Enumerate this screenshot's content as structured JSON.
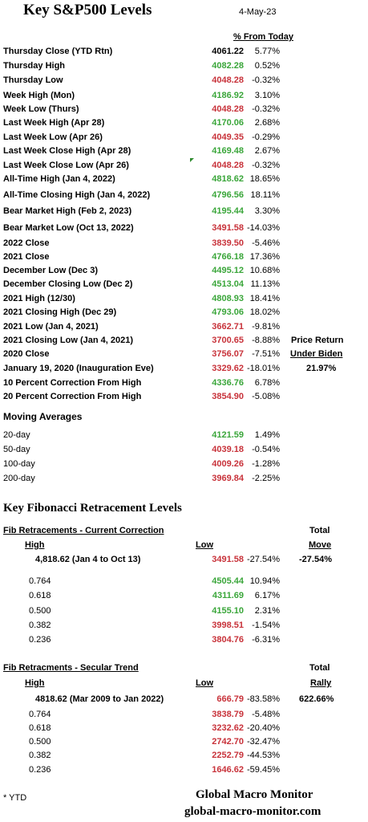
{
  "header": {
    "title": "Key S&P500 Levels",
    "date": "4-May-23",
    "pct_header": "% From Today"
  },
  "levels": [
    {
      "label": "Thursday Close (YTD Rtn)",
      "value": "4061.22",
      "pct": "5.77%",
      "color": "black"
    },
    {
      "label": "Thursday  High",
      "value": "4082.28",
      "pct": "0.52%",
      "color": "green"
    },
    {
      "label": "Thursday Low",
      "value": "4048.28",
      "pct": "-0.32%",
      "color": "red"
    },
    {
      "label": "Week High (Mon)",
      "value": "4186.92",
      "pct": "3.10%",
      "color": "green"
    },
    {
      "label": "Week Low (Thurs)",
      "value": "4048.28",
      "pct": "-0.32%",
      "color": "red"
    },
    {
      "label": "Last Week High (Apr 28)",
      "value": "4170.06",
      "pct": "2.68%",
      "color": "green"
    },
    {
      "label": "Last  Week Low  (Apr 26)",
      "value": "4049.35",
      "pct": "-0.29%",
      "color": "red"
    },
    {
      "label": "Last Week Close High (Apr 28)",
      "value": "4169.48",
      "pct": "2.67%",
      "color": "green"
    },
    {
      "label": "Last Week Close Low  (Apr 26)",
      "value": "4048.28",
      "pct": "-0.32%",
      "color": "red"
    },
    {
      "label": "All-Time High (Jan 4, 2022)",
      "value": "4818.62",
      "pct": "18.65%",
      "color": "green"
    },
    {
      "label": "All-Time Closing High (Jan 4, 2022)",
      "value": "4796.56",
      "pct": "18.11%",
      "color": "green"
    },
    {
      "label": "Bear Market High (Feb 2, 2023)",
      "value": "4195.44",
      "pct": "3.30%",
      "color": "green"
    },
    {
      "label": "Bear Market Low (Oct 13, 2022)",
      "value": "3491.58",
      "pct": "-14.03%",
      "color": "red"
    },
    {
      "label": "2022 Close",
      "value": "3839.50",
      "pct": "-5.46%",
      "color": "red"
    },
    {
      "label": "2021 Close",
      "value": "4766.18",
      "pct": "17.36%",
      "color": "green"
    },
    {
      "label": "December Low (Dec 3)",
      "value": "4495.12",
      "pct": "10.68%",
      "color": "green"
    },
    {
      "label": "December Closing Low (Dec 2)",
      "value": "4513.04",
      "pct": "11.13%",
      "color": "green"
    },
    {
      "label": "2021 High (12/30)",
      "value": "4808.93",
      "pct": "18.41%",
      "color": "green"
    },
    {
      "label": "2021 Closing High (Dec 29)",
      "value": "4793.06",
      "pct": "18.02%",
      "color": "green"
    },
    {
      "label": "2021 Low (Jan 4, 2021)",
      "value": "3662.71",
      "pct": "-9.81%",
      "color": "red"
    },
    {
      "label": "2021 Closing Low (Jan 4, 2021)",
      "value": "3700.65",
      "pct": "-8.88%",
      "color": "red"
    },
    {
      "label": "2020 Close",
      "value": "3756.07",
      "pct": "-7.51%",
      "color": "red"
    },
    {
      "label": "January 19, 2020 (Inauguration Eve)",
      "value": "3329.62",
      "pct": "-18.01%",
      "color": "red"
    },
    {
      "label": "10 Percent Correction From High",
      "value": "4336.76",
      "pct": "6.78%",
      "color": "green"
    },
    {
      "label": "20 Percent Correction From High",
      "value": "3854.90",
      "pct": "-5.08%",
      "color": "red"
    }
  ],
  "biden": {
    "line1": "Price Return",
    "line2": "Under Biden",
    "value": "21.97%"
  },
  "moving_averages": {
    "title": "Moving Averages",
    "rows": [
      {
        "label": "20-day",
        "value": "4121.59",
        "pct": "1.49%",
        "color": "green"
      },
      {
        "label": "50-day",
        "value": "4039.18",
        "pct": "-0.54%",
        "color": "red"
      },
      {
        "label": "100-day",
        "value": "4009.26",
        "pct": "-1.28%",
        "color": "red"
      },
      {
        "label": "200-day",
        "value": "3969.84",
        "pct": "-2.25%",
        "color": "red"
      }
    ]
  },
  "fib": {
    "title": "Key Fibonacci Retracement Levels",
    "current": {
      "heading": "Fib Retracements - Current Correction",
      "total_label1": "Total",
      "total_label2": "Move",
      "high_label": "High",
      "low_label": "Low",
      "high_desc": "4,818.62  (Jan 4 to Oct 13)",
      "low_value": "3491.58",
      "low_pct": "-27.54%",
      "total": "-27.54%",
      "rows": [
        {
          "ratio": "0.764",
          "value": "4505.44",
          "pct": "10.94%",
          "color": "green"
        },
        {
          "ratio": "0.618",
          "value": "4311.69",
          "pct": "6.17%",
          "color": "green"
        },
        {
          "ratio": "0.500",
          "value": "4155.10",
          "pct": "2.31%",
          "color": "green"
        },
        {
          "ratio": "0.382",
          "value": "3998.51",
          "pct": "-1.54%",
          "color": "red"
        },
        {
          "ratio": "0.236",
          "value": "3804.76",
          "pct": "-6.31%",
          "color": "red"
        }
      ]
    },
    "secular": {
      "heading": "Fib Retracments - Secular Trend",
      "total_label1": "Total",
      "total_label2": "Rally",
      "high_label": "High",
      "low_label": "Low",
      "high_desc": "4818.62  (Mar 2009  to Jan 2022)",
      "low_value": "666.79",
      "low_pct": "-83.58%",
      "total": "622.66%",
      "rows": [
        {
          "ratio": "0.764",
          "value": "3838.79",
          "pct": "-5.48%",
          "color": "red"
        },
        {
          "ratio": "0.618",
          "value": "3232.62",
          "pct": "-20.40%",
          "color": "red"
        },
        {
          "ratio": "0.500",
          "value": "2742.70",
          "pct": "-32.47%",
          "color": "red"
        },
        {
          "ratio": "0.382",
          "value": "2252.79",
          "pct": "-44.53%",
          "color": "red"
        },
        {
          "ratio": "0.236",
          "value": "1646.62",
          "pct": "-59.45%",
          "color": "red"
        }
      ]
    }
  },
  "footer": {
    "note": "* YTD",
    "brand": "Global Macro Monitor",
    "url": "global-macro-monitor.com"
  }
}
